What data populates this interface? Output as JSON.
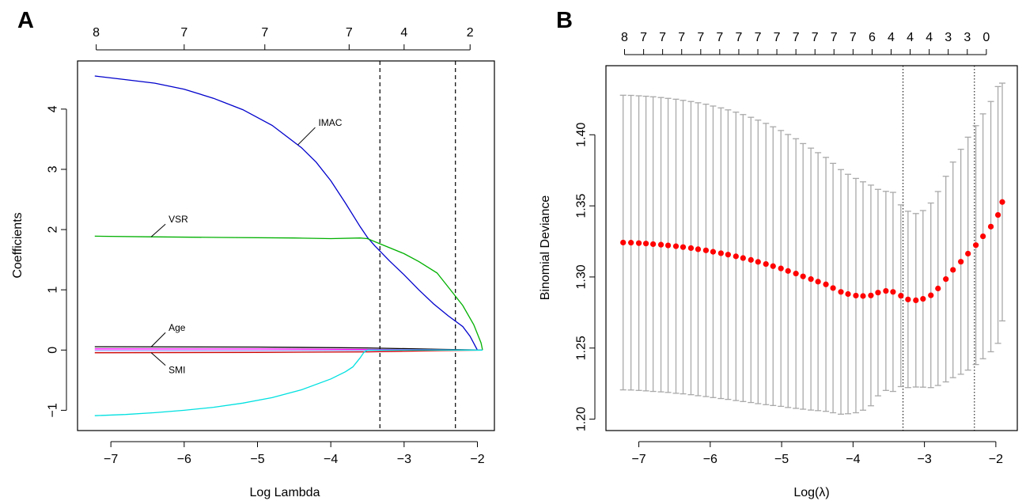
{
  "chart_data": [
    {
      "panel": "A",
      "type": "line",
      "title": "",
      "xlabel": "Log Lambda",
      "ylabel": "Coefficients",
      "xlim": [
        -7.25,
        -1.93
      ],
      "ylim": [
        -1.1,
        4.55
      ],
      "x_ticks": [
        -7,
        -6,
        -5,
        -4,
        -3,
        -2
      ],
      "y_ticks": [
        -1,
        0,
        1,
        2,
        3,
        4
      ],
      "top_axis": {
        "positions": [
          -7.2,
          -6.0,
          -4.9,
          -3.75,
          -3.0,
          -2.1
        ],
        "labels": [
          "8",
          "7",
          "7",
          "7",
          "4",
          "2"
        ]
      },
      "vlines": [
        -3.33,
        -2.3
      ],
      "vline_style": "dashed",
      "grid": false,
      "series": [
        {
          "name": "IMAC",
          "color": "#0000cc",
          "x": [
            -7.22,
            -6.8,
            -6.4,
            -6.0,
            -5.6,
            -5.2,
            -4.8,
            -4.4,
            -4.2,
            -4.0,
            -3.8,
            -3.6,
            -3.5,
            -3.4,
            -3.2,
            -3.0,
            -2.8,
            -2.6,
            -2.4,
            -2.2,
            -2.1,
            -2.0,
            -1.93
          ],
          "y": [
            4.55,
            4.49,
            4.43,
            4.33,
            4.18,
            3.99,
            3.73,
            3.36,
            3.12,
            2.81,
            2.44,
            2.05,
            1.87,
            1.73,
            1.48,
            1.25,
            1.0,
            0.77,
            0.57,
            0.39,
            0.23,
            0.0,
            0.0
          ]
        },
        {
          "name": "VSR",
          "color": "#00b000",
          "x": [
            -7.22,
            -6.5,
            -5.5,
            -4.5,
            -4.0,
            -3.6,
            -3.5,
            -3.3,
            -3.0,
            -2.8,
            -2.55,
            -2.4,
            -2.2,
            -2.05,
            -1.95,
            -1.93
          ],
          "y": [
            1.89,
            1.88,
            1.87,
            1.86,
            1.85,
            1.86,
            1.85,
            1.75,
            1.6,
            1.47,
            1.28,
            1.05,
            0.74,
            0.42,
            0.12,
            0.0
          ]
        },
        {
          "name": "Age",
          "color": "#000000",
          "x": [
            -7.22,
            -5.0,
            -3.5,
            -2.5,
            -1.93
          ],
          "y": [
            0.055,
            0.05,
            0.035,
            0.012,
            0.0
          ]
        },
        {
          "name": "",
          "color": "#ff00ff",
          "x": [
            -7.22,
            -5.0,
            -3.5,
            -2.5,
            -1.93
          ],
          "y": [
            0.02,
            0.018,
            0.01,
            0.004,
            0.0
          ]
        },
        {
          "name": "",
          "color": "#9999ff",
          "x": [
            -7.22,
            -5.0,
            -3.5,
            -2.5,
            -1.93
          ],
          "y": [
            -0.01,
            -0.009,
            -0.005,
            -0.002,
            0.0
          ]
        },
        {
          "name": "SMI",
          "color": "#cc0000",
          "x": [
            -7.22,
            -5.0,
            -3.5,
            -2.5,
            -1.93
          ],
          "y": [
            -0.045,
            -0.04,
            -0.03,
            -0.01,
            0.0
          ]
        },
        {
          "name": "",
          "color": "#00e0e0",
          "x": [
            -7.22,
            -6.8,
            -6.4,
            -6.0,
            -5.6,
            -5.2,
            -4.8,
            -4.4,
            -4.0,
            -3.8,
            -3.7,
            -3.6,
            -3.55,
            -3.5,
            -1.93
          ],
          "y": [
            -1.09,
            -1.07,
            -1.04,
            -1.0,
            -0.95,
            -0.88,
            -0.79,
            -0.66,
            -0.48,
            -0.36,
            -0.28,
            -0.13,
            -0.04,
            0.0,
            0.0
          ]
        }
      ],
      "annotations": [
        {
          "text": "IMAC",
          "series": "IMAC"
        },
        {
          "text": "VSR",
          "series": "VSR"
        },
        {
          "text": "Age",
          "series": "Age"
        },
        {
          "text": "SMI",
          "series": "SMI"
        }
      ]
    },
    {
      "panel": "B",
      "type": "scatter",
      "title": "",
      "xlabel": "Log(λ)",
      "ylabel": "Binomial Deviance",
      "xlim": [
        -7.25,
        -1.91
      ],
      "ylim": [
        1.202,
        1.438
      ],
      "x_ticks": [
        -7,
        -6,
        -5,
        -4,
        -3,
        -2
      ],
      "y_ticks": [
        1.2,
        1.25,
        1.3,
        1.35,
        1.4
      ],
      "y_tick_labels": [
        "1.20",
        "1.25",
        "1.30",
        "1.35",
        "1.40"
      ],
      "top_axis": {
        "positions": [
          -7.2,
          -6.933,
          -6.667,
          -6.4,
          -6.133,
          -5.867,
          -5.6,
          -5.333,
          -5.067,
          -4.8,
          -4.533,
          -4.267,
          -4.0,
          -3.733,
          -3.467,
          -3.2,
          -2.933,
          -2.667,
          -2.4,
          -2.133
        ],
        "labels": [
          "8",
          "7",
          "7",
          "7",
          "7",
          "7",
          "7",
          "7",
          "7",
          "7",
          "7",
          "7",
          "7",
          "6",
          "4",
          "4",
          "4",
          "3",
          "3",
          "0"
        ]
      },
      "vlines": [
        -3.3,
        -2.3
      ],
      "vline_style": "dotted",
      "grid": false,
      "point_color": "#ff0000",
      "errorbar_color": "#a9a9a9",
      "series": [
        {
          "name": "",
          "x": [
            -7.22,
            -7.11,
            -7.0,
            -6.9,
            -6.8,
            -6.69,
            -6.59,
            -6.48,
            -6.38,
            -6.27,
            -6.17,
            -6.06,
            -5.96,
            -5.85,
            -5.75,
            -5.64,
            -5.54,
            -5.43,
            -5.33,
            -5.22,
            -5.12,
            -5.01,
            -4.91,
            -4.8,
            -4.7,
            -4.59,
            -4.49,
            -4.38,
            -4.28,
            -4.17,
            -4.07,
            -3.96,
            -3.86,
            -3.75,
            -3.65,
            -3.54,
            -3.44,
            -3.33,
            -3.23,
            -3.12,
            -3.02,
            -2.91,
            -2.81,
            -2.7,
            -2.6,
            -2.49,
            -2.39,
            -2.28,
            -2.18,
            -2.07,
            -1.97,
            -1.91
          ],
          "y": [
            1.3242,
            1.3241,
            1.3238,
            1.3235,
            1.3231,
            1.3227,
            1.3222,
            1.3216,
            1.321,
            1.3203,
            1.3195,
            1.3187,
            1.3177,
            1.3167,
            1.3157,
            1.3145,
            1.3133,
            1.312,
            1.3106,
            1.3091,
            1.3076,
            1.306,
            1.3042,
            1.3024,
            1.3004,
            1.2985,
            1.2967,
            1.2948,
            1.2922,
            1.2895,
            1.288,
            1.2869,
            1.2866,
            1.287,
            1.289,
            1.2902,
            1.2895,
            1.2868,
            1.2842,
            1.2836,
            1.2846,
            1.2871,
            1.2919,
            1.2985,
            1.305,
            1.3107,
            1.3164,
            1.3224,
            1.3286,
            1.3354,
            1.3436,
            1.3527
          ],
          "upper": [
            1.4278,
            1.4277,
            1.4274,
            1.4271,
            1.4267,
            1.4262,
            1.4256,
            1.425,
            1.4242,
            1.4234,
            1.4225,
            1.4215,
            1.4202,
            1.4189,
            1.4175,
            1.4159,
            1.4142,
            1.4123,
            1.4103,
            1.408,
            1.4056,
            1.403,
            1.4002,
            1.3972,
            1.3938,
            1.3906,
            1.3874,
            1.3841,
            1.3799,
            1.3755,
            1.3722,
            1.3693,
            1.3669,
            1.3646,
            1.3616,
            1.3602,
            1.3595,
            1.3507,
            1.3462,
            1.3446,
            1.3467,
            1.352,
            1.3601,
            1.3708,
            1.3808,
            1.3898,
            1.3983,
            1.4064,
            1.4147,
            1.4234,
            1.4339,
            1.4363
          ],
          "lower": [
            1.2206,
            1.2205,
            1.2202,
            1.2199,
            1.2195,
            1.2192,
            1.2188,
            1.2182,
            1.2178,
            1.2172,
            1.2165,
            1.2159,
            1.2152,
            1.2145,
            1.2139,
            1.2131,
            1.2124,
            1.2117,
            1.2109,
            1.2102,
            1.2096,
            1.209,
            1.2082,
            1.2076,
            1.207,
            1.2064,
            1.206,
            1.2055,
            1.2045,
            1.2035,
            1.2038,
            1.2045,
            1.2063,
            1.2094,
            1.2164,
            1.2202,
            1.2195,
            1.2229,
            1.2222,
            1.2226,
            1.2225,
            1.2222,
            1.2237,
            1.2262,
            1.2292,
            1.2316,
            1.2345,
            1.2384,
            1.2425,
            1.2474,
            1.2533,
            1.2691
          ]
        }
      ]
    }
  ]
}
